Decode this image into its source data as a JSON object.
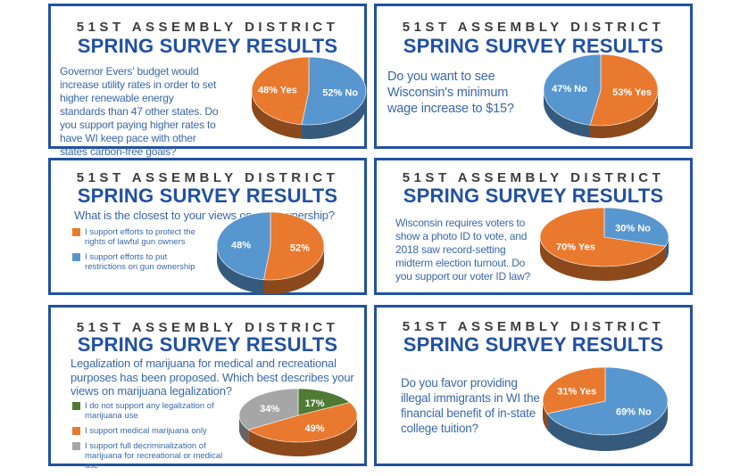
{
  "header": {
    "district": "51ST ASSEMBLY DISTRICT",
    "title": "SPRING SURVEY RESULTS"
  },
  "colors": {
    "orange": "#e9792f",
    "blue": "#5896cf",
    "green": "#4f7a34",
    "gray": "#a6a6a6",
    "title_blue": "#2151a3"
  },
  "chart_data": [
    {
      "type": "pie",
      "id": "utility",
      "question": "Governor Evers' budget would increase utility rates in order to set higher renewable energy standards than 47 other states. Do you support paying higher rates to have WI keep pace with other states carbon-free goals?",
      "slices": [
        {
          "label": "52% No",
          "value": 52,
          "color": "#5896cf"
        },
        {
          "label": "48% Yes",
          "value": 48,
          "color": "#e9792f"
        }
      ]
    },
    {
      "type": "pie",
      "id": "wage",
      "question": "Do you want to see Wisconsin's minimum wage increase to $15?",
      "slices": [
        {
          "label": "53% Yes",
          "value": 53,
          "color": "#e9792f"
        },
        {
          "label": "47% No",
          "value": 47,
          "color": "#5896cf"
        }
      ]
    },
    {
      "type": "pie",
      "id": "guns",
      "question": "What is the closest to your views on gun ownership?",
      "legend": [
        "I support efforts to protect the rights of lawful gun owners",
        "I support efforts to put restrictions on gun ownership"
      ],
      "slices": [
        {
          "label": "52%",
          "value": 52,
          "color": "#e9792f"
        },
        {
          "label": "48%",
          "value": 48,
          "color": "#5896cf"
        }
      ]
    },
    {
      "type": "pie",
      "id": "voterid",
      "question": "Wisconsin requires voters to show a photo ID to vote, and 2018 saw record-setting midterm election turnout. Do you support our voter ID law?",
      "slices": [
        {
          "label": "30% No",
          "value": 30,
          "color": "#5896cf"
        },
        {
          "label": "70% Yes",
          "value": 70,
          "color": "#e9792f"
        }
      ]
    },
    {
      "type": "pie",
      "id": "marijuana",
      "question": "Legalization of marijuana for medical and recreational purposes has been proposed. Which best describes your views on marijuana legalization?",
      "legend": [
        "I do not support any legalization of marijuana use",
        "I support medical marijuana only",
        "I support full decriminalization of marijuana for recreational or medical use"
      ],
      "slices": [
        {
          "label": "17%",
          "value": 17,
          "color": "#4f7a34"
        },
        {
          "label": "49%",
          "value": 49,
          "color": "#e9792f"
        },
        {
          "label": "34%",
          "value": 34,
          "color": "#a6a6a6"
        }
      ]
    },
    {
      "type": "pie",
      "id": "tuition",
      "question": "Do you favor providing illegal immigrants in WI the financial benefit of in-state college tuition?",
      "slices": [
        {
          "label": "69% No",
          "value": 69,
          "color": "#5896cf"
        },
        {
          "label": "31% Yes",
          "value": 31,
          "color": "#e9792f"
        }
      ]
    }
  ]
}
